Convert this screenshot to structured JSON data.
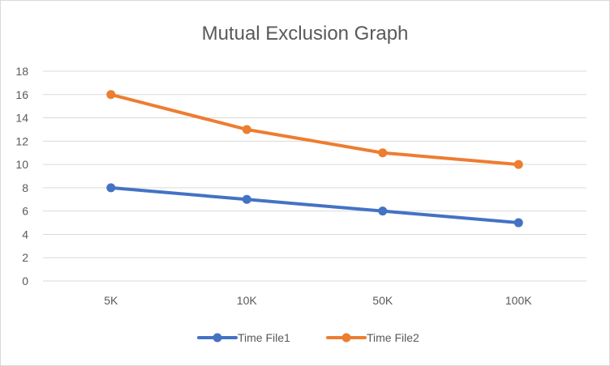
{
  "chart_data": {
    "type": "line",
    "title": "Mutual Exclusion Graph",
    "xlabel": "",
    "ylabel": "",
    "categories": [
      "5K",
      "10K",
      "50K",
      "100K"
    ],
    "ylim": [
      0,
      18
    ],
    "yticks": [
      0,
      2,
      4,
      6,
      8,
      10,
      12,
      14,
      16,
      18
    ],
    "grid": true,
    "legend_position": "bottom",
    "series": [
      {
        "name": "Time File1",
        "values": [
          8,
          7,
          6,
          5
        ],
        "color": "#4472C4"
      },
      {
        "name": "Time File2",
        "values": [
          16,
          13,
          11,
          10
        ],
        "color": "#ED7D31"
      }
    ]
  }
}
